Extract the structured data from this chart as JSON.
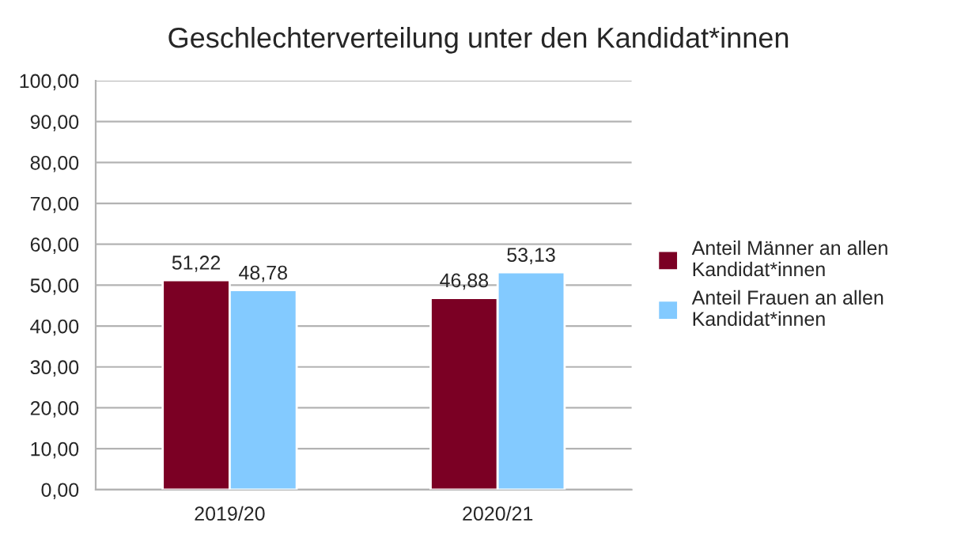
{
  "chart_data": {
    "type": "bar",
    "title": "Geschlechterverteilung unter den Kandidat*innen",
    "categories": [
      "2019/20",
      "2020/21"
    ],
    "series": [
      {
        "name": "Anteil Männer an allen Kandidat*innen",
        "color": "#7b0024",
        "values": [
          51.22,
          46.88
        ],
        "value_labels": [
          "51,22",
          "46,88"
        ]
      },
      {
        "name": "Anteil Frauen an allen Kandidat*innen",
        "color": "#83caff",
        "values": [
          48.78,
          53.13
        ],
        "value_labels": [
          "48,78",
          "53,13"
        ]
      }
    ],
    "ylim": [
      0,
      100
    ],
    "yticks": [
      {
        "value": 0,
        "label": "0,00"
      },
      {
        "value": 10,
        "label": "10,00"
      },
      {
        "value": 20,
        "label": "20,00"
      },
      {
        "value": 30,
        "label": "30,00"
      },
      {
        "value": 40,
        "label": "40,00"
      },
      {
        "value": 50,
        "label": "50,00"
      },
      {
        "value": 60,
        "label": "60,00"
      },
      {
        "value": 70,
        "label": "70,00"
      },
      {
        "value": 80,
        "label": "80,00"
      },
      {
        "value": 90,
        "label": "90,00"
      },
      {
        "value": 100,
        "label": "100,00"
      }
    ],
    "grid": "y",
    "legend": "right"
  }
}
